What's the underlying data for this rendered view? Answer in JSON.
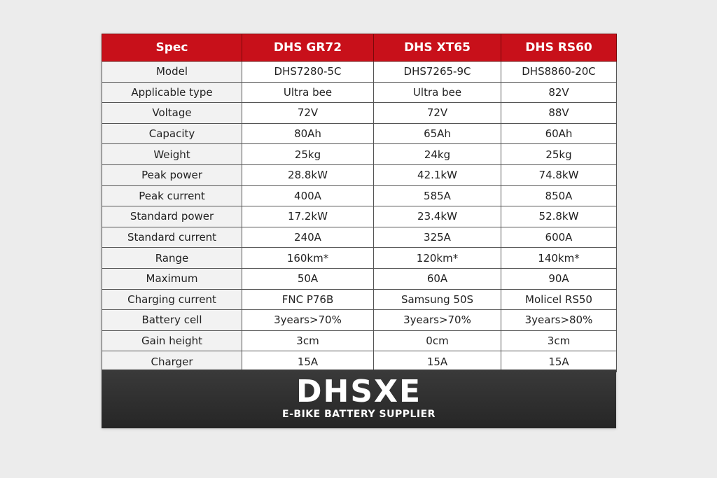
{
  "table": {
    "headers": [
      "Spec",
      "DHS GR72",
      "DHS XT65",
      "DHS RS60"
    ],
    "rows": [
      [
        "Model",
        "DHS7280-5C",
        "DHS7265-9C",
        "DHS8860-20C"
      ],
      [
        "Applicable type",
        "Ultra bee",
        "Ultra bee",
        "82V"
      ],
      [
        "Voltage",
        "72V",
        "72V",
        "88V"
      ],
      [
        "Capacity",
        "80Ah",
        "65Ah",
        "60Ah"
      ],
      [
        "Weight",
        "25kg",
        "24kg",
        "25kg"
      ],
      [
        "Peak power",
        "28.8kW",
        "42.1kW",
        "74.8kW"
      ],
      [
        "Peak current",
        "400A",
        "585A",
        "850A"
      ],
      [
        "Standard power",
        "17.2kW",
        "23.4kW",
        "52.8kW"
      ],
      [
        "Standard current",
        "240A",
        "325A",
        "600A"
      ],
      [
        "Range",
        "160km*",
        "120km*",
        "140km*"
      ],
      [
        "Maximum",
        "50A",
        "60A",
        "90A"
      ],
      [
        "Charging current",
        "FNC P76B",
        "Samsung 50S",
        "Molicel RS50"
      ],
      [
        "Battery cell",
        "3years>70%",
        "3years>70%",
        "3years>80%"
      ],
      [
        "Gain height",
        "3cm",
        "0cm",
        "3cm"
      ],
      [
        "Charger",
        "15A",
        "15A",
        "15A"
      ]
    ]
  },
  "footer": {
    "brand": "DHSXE",
    "tagline": "E-BIKE BATTERY SUPPLIER"
  }
}
